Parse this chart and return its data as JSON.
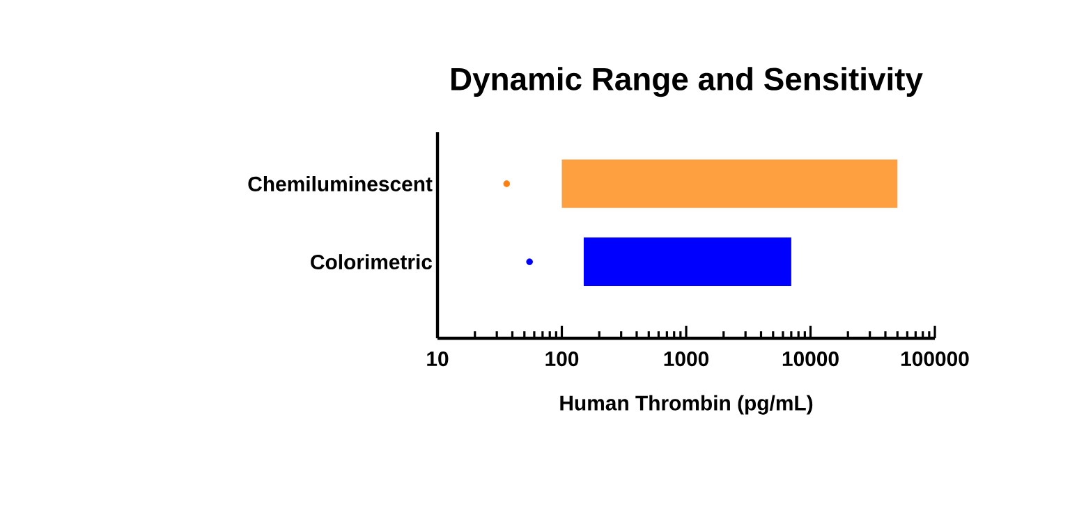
{
  "chart_data": {
    "type": "bar",
    "orientation": "horizontal",
    "log": "x",
    "title": "Dynamic Range and Sensitivity",
    "xlabel": "Human Thrombin (pg/mL)",
    "categories": [
      "Chemiluminescent",
      "Colorimetric"
    ],
    "series": [
      {
        "colors": [
          "#ffa040",
          "#0000ff"
        ],
        "base": [
          100,
          150
        ],
        "values": [
          49900,
          6850
        ]
      },
      {
        "type": "scatter",
        "marker": "circle",
        "colors": [
          "#ff7f0e",
          "#0000ff"
        ],
        "values": [
          36,
          55
        ]
      }
    ],
    "xlim": [
      10,
      100000
    ],
    "xticks": [
      10,
      100,
      1000,
      10000,
      100000
    ]
  }
}
